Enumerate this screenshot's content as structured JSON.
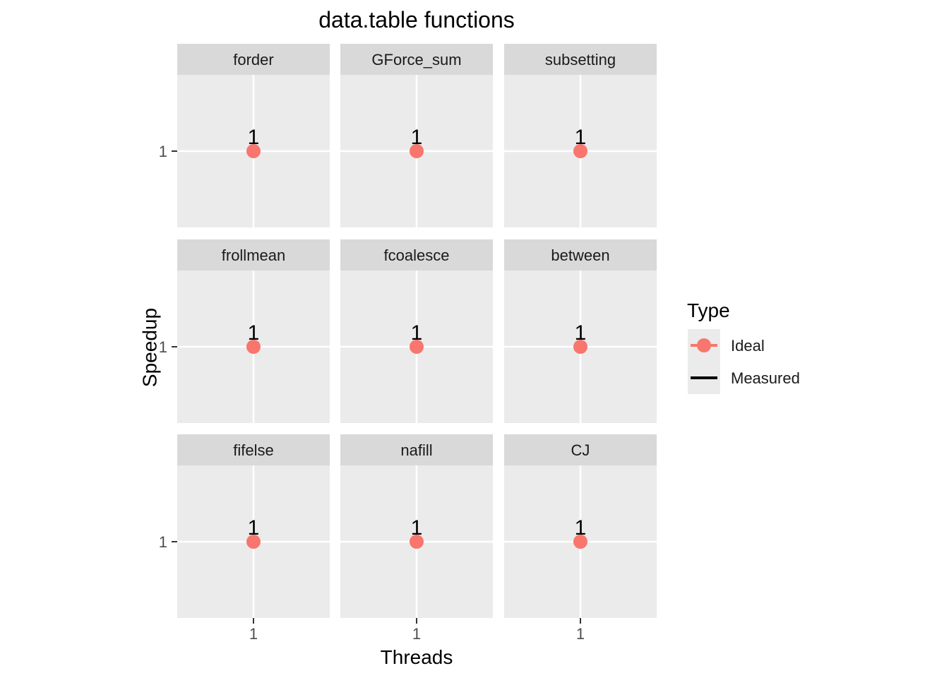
{
  "chart_data": {
    "type": "scatter",
    "title": "data.table functions",
    "xlabel": "Threads",
    "ylabel": "Speedup",
    "grid": true,
    "legend": {
      "title": "Type",
      "position": "right",
      "entries": [
        {
          "label": "Ideal",
          "color": "#F8766D",
          "symbol": "point-line"
        },
        {
          "label": "Measured",
          "color": "#000000",
          "symbol": "line"
        }
      ]
    },
    "x_ticks": [
      "1"
    ],
    "y_ticks": [
      "1"
    ],
    "colors": {
      "panel_bg": "#EBEBEB",
      "strip_bg": "#D9D9D9",
      "grid": "#FFFFFF",
      "ideal": "#F8766D",
      "measured": "#000000"
    },
    "facets": [
      {
        "name": "forder",
        "x": [
          1
        ],
        "y": [
          1
        ],
        "labels": [
          "1"
        ]
      },
      {
        "name": "GForce_sum",
        "x": [
          1
        ],
        "y": [
          1
        ],
        "labels": [
          "1"
        ]
      },
      {
        "name": "subsetting",
        "x": [
          1
        ],
        "y": [
          1
        ],
        "labels": [
          "1"
        ]
      },
      {
        "name": "frollmean",
        "x": [
          1
        ],
        "y": [
          1
        ],
        "labels": [
          "1"
        ]
      },
      {
        "name": "fcoalesce",
        "x": [
          1
        ],
        "y": [
          1
        ],
        "labels": [
          "1"
        ]
      },
      {
        "name": "between",
        "x": [
          1
        ],
        "y": [
          1
        ],
        "labels": [
          "1"
        ]
      },
      {
        "name": "fifelse",
        "x": [
          1
        ],
        "y": [
          1
        ],
        "labels": [
          "1"
        ]
      },
      {
        "name": "nafill",
        "x": [
          1
        ],
        "y": [
          1
        ],
        "labels": [
          "1"
        ]
      },
      {
        "name": "CJ",
        "x": [
          1
        ],
        "y": [
          1
        ],
        "labels": [
          "1"
        ]
      }
    ]
  }
}
